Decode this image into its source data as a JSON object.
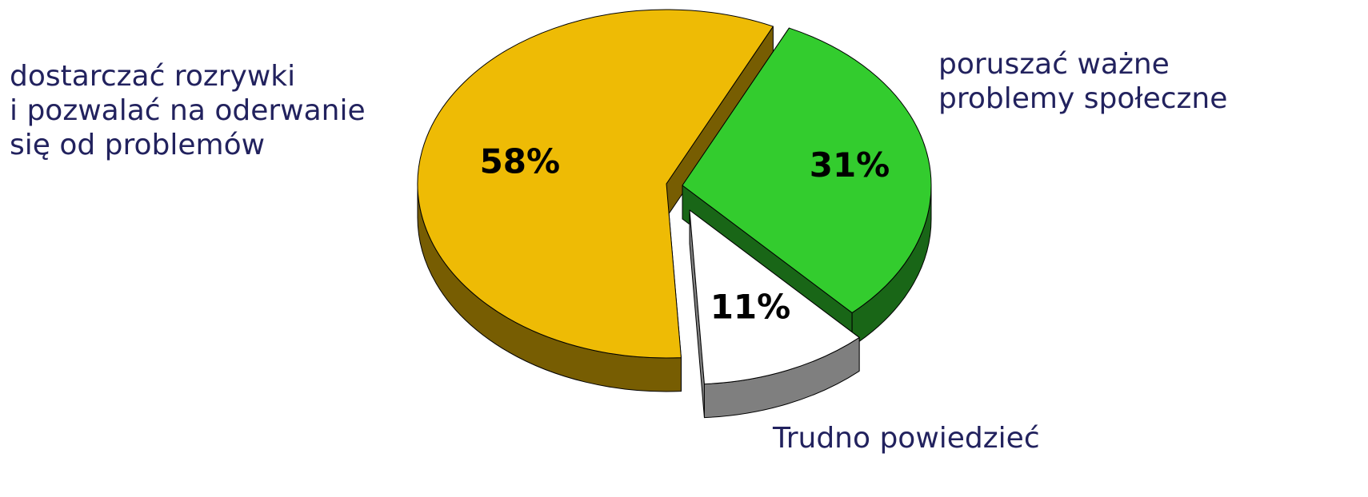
{
  "chart_data": {
    "type": "pie",
    "categories": [
      [
        "dostarczać rozrywki",
        "i pozwalać na oderwanie",
        "się od problemów"
      ],
      [
        "poruszać ważne",
        "problemy społeczne"
      ],
      [
        "Trudno powiedzieć"
      ]
    ],
    "values": [
      58,
      31,
      11
    ],
    "value_labels": [
      "58%",
      "31%",
      "11%"
    ],
    "colors": [
      "#eebb05",
      "#33cc2e",
      "#ffffff"
    ]
  }
}
